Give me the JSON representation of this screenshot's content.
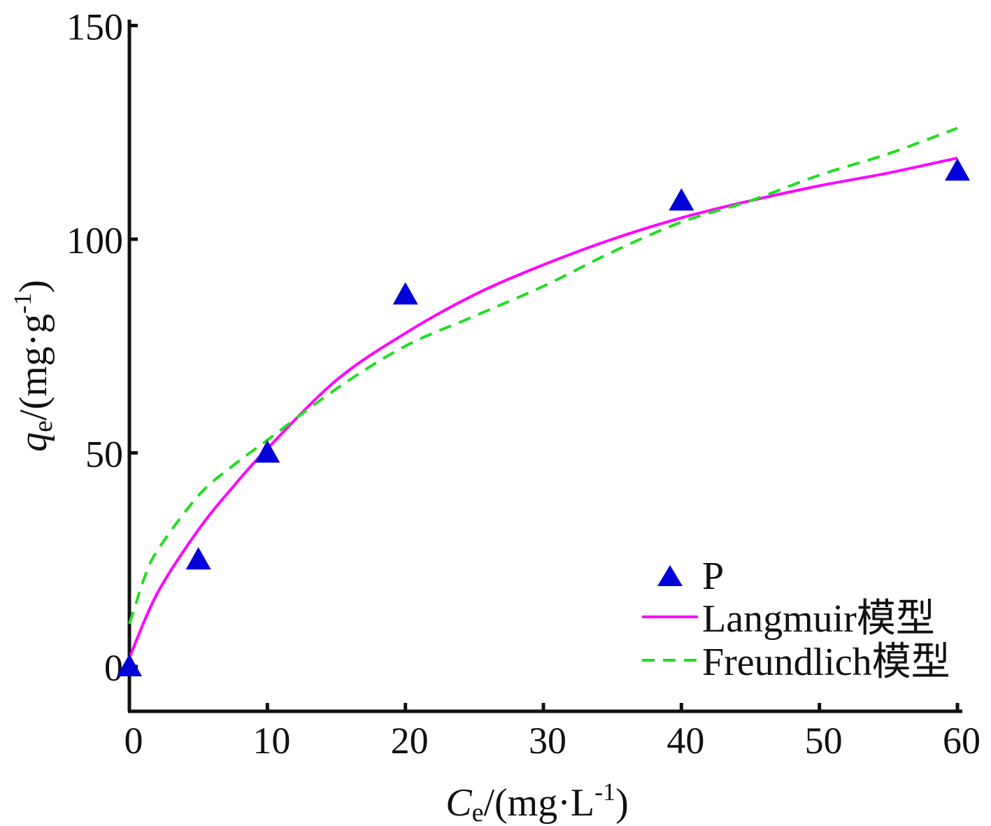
{
  "chart_data": {
    "type": "scatter",
    "xlabel": {
      "base": "C",
      "sub": "e",
      "unit_open": "/(mg·L",
      "sup": "-1",
      "unit_close": ")"
    },
    "ylabel": {
      "base": "q",
      "sub": "e",
      "unit_open": "/(mg·g",
      "sup": "-1",
      "unit_close": ")"
    },
    "xlim": [
      0,
      60
    ],
    "ylim": [
      -10,
      150
    ],
    "xticks": [
      0,
      10,
      20,
      30,
      40,
      50,
      60
    ],
    "yticks": [
      0,
      50,
      100,
      150
    ],
    "grid": false,
    "legend_position": "bottom-right",
    "series": [
      {
        "name": "P",
        "kind": "points",
        "marker": "triangle",
        "color": "#0000d8",
        "x": [
          0,
          5,
          10,
          20,
          40,
          60
        ],
        "y": [
          0,
          25,
          50,
          87,
          109,
          116
        ]
      },
      {
        "name": "Langmuir模型",
        "kind": "line",
        "style": "solid",
        "color": "#ff00ff",
        "x": [
          0,
          2,
          5,
          7.5,
          10,
          15,
          20,
          25,
          30,
          35,
          40,
          45,
          50,
          55,
          60
        ],
        "y": [
          2,
          17,
          32,
          42,
          51,
          67,
          78,
          87,
          94,
          100,
          105,
          109,
          112.5,
          115.5,
          119
        ]
      },
      {
        "name": "Freundlich模型",
        "kind": "line",
        "style": "dashed",
        "color": "#22dd22",
        "x": [
          0,
          0.5,
          1,
          2,
          5,
          7.5,
          10,
          15,
          20,
          25,
          30,
          35,
          40,
          45,
          50,
          55,
          60
        ],
        "y": [
          10,
          15,
          20,
          27,
          40,
          47,
          53,
          65,
          75,
          82,
          89,
          97,
          104,
          109,
          115,
          120,
          126
        ]
      }
    ]
  }
}
